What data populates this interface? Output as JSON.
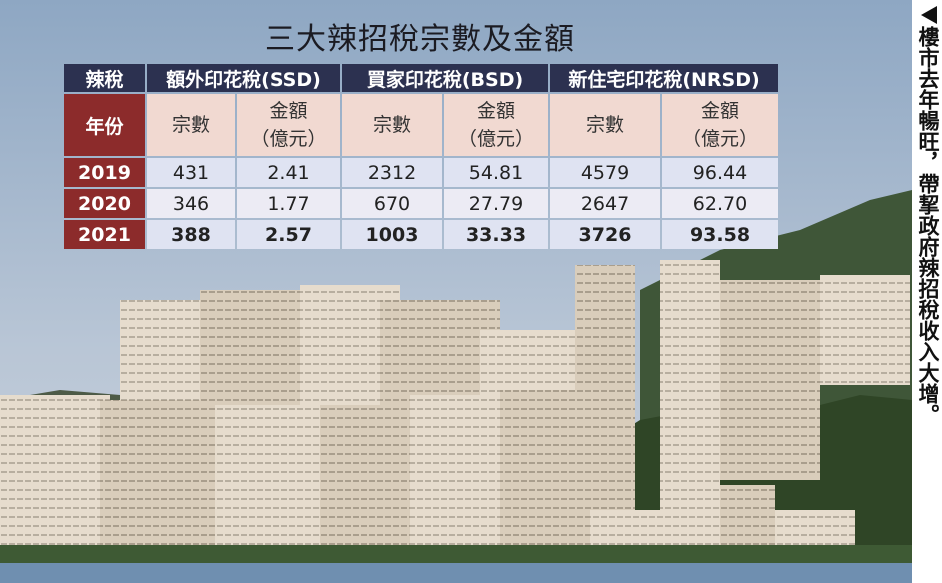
{
  "title": "三大辣招稅宗數及金額",
  "table": {
    "header": [
      "辣稅",
      "額外印花稅(SSD)",
      "買家印花稅(BSD)",
      "新住宅印花稅(NRSD)"
    ],
    "subheader": [
      "年份",
      "宗數",
      "金額\n（億元）",
      "宗數",
      "金額\n（億元）",
      "宗數",
      "金額\n（億元）"
    ],
    "rows": [
      [
        "2019",
        "431",
        "2.41",
        "2312",
        "54.81",
        "4579",
        "96.44"
      ],
      [
        "2020",
        "346",
        "1.77",
        "670",
        "27.79",
        "2647",
        "62.70"
      ],
      [
        "2021",
        "388",
        "2.57",
        "1003",
        "33.33",
        "3726",
        "93.58"
      ]
    ]
  },
  "caption": "樓市去年暢旺，帶挈政府辣招稅收入大增。"
}
